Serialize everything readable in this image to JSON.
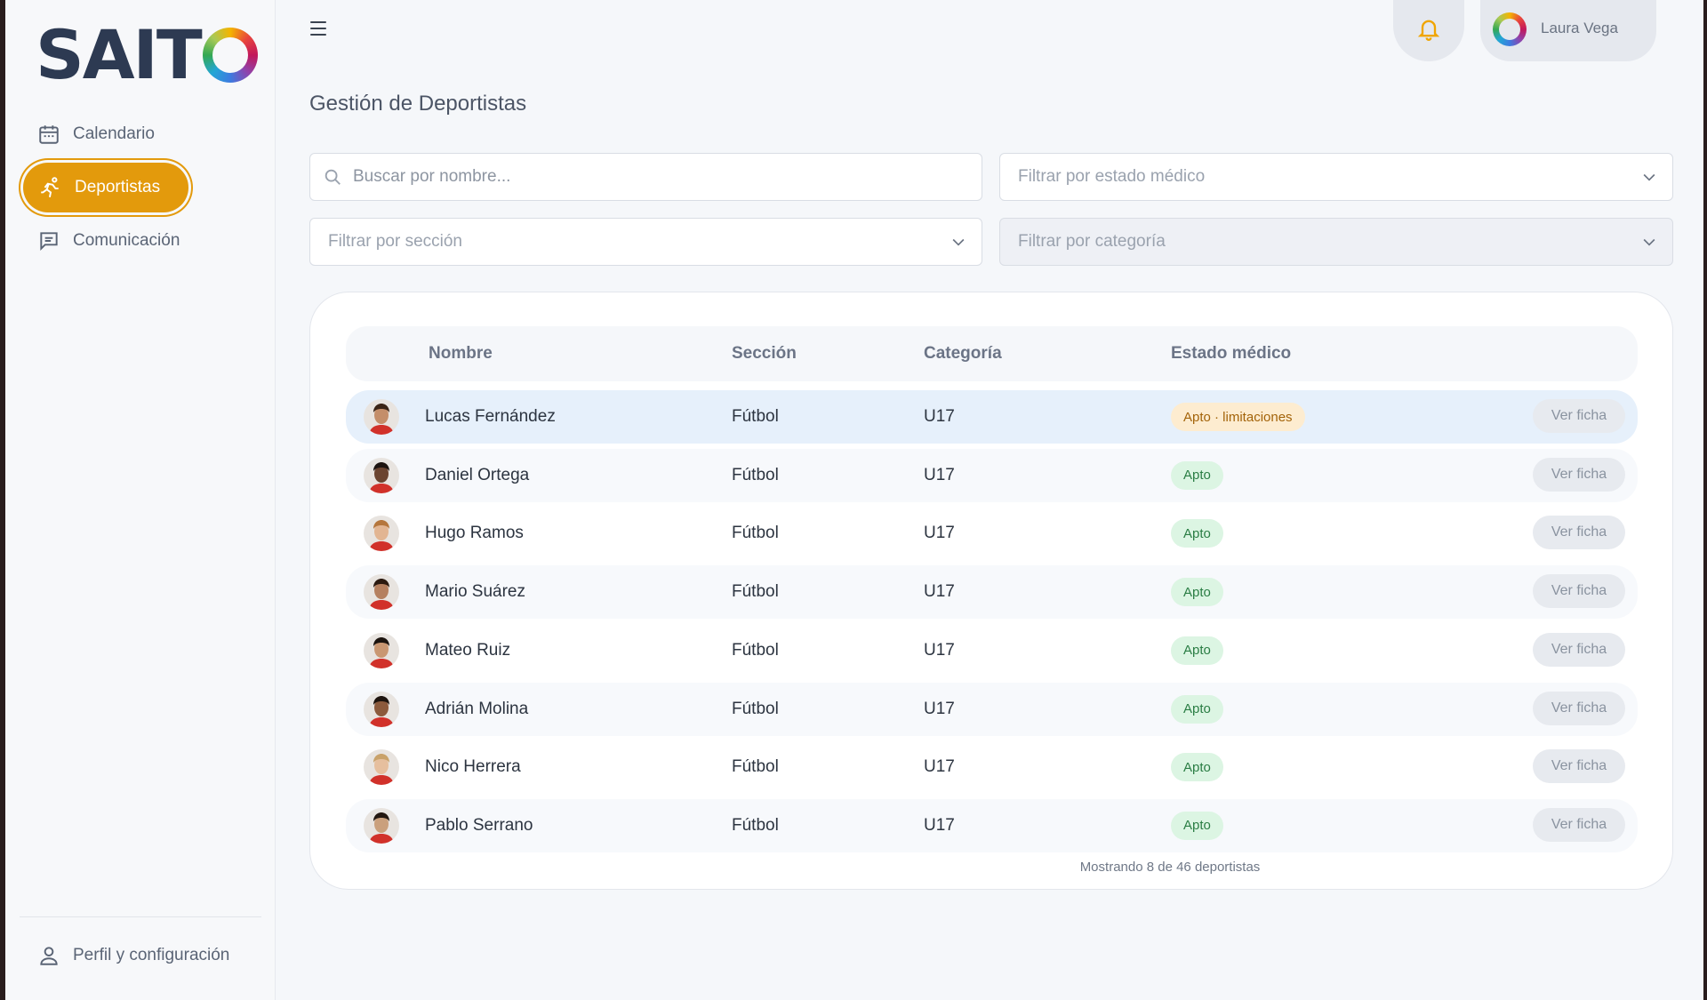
{
  "brand": {
    "logo_text": "SAIT"
  },
  "sidebar": {
    "items": [
      {
        "label": "Calendario",
        "icon": "calendar-icon"
      },
      {
        "label": "Deportistas",
        "icon": "runner-icon",
        "active": true
      },
      {
        "label": "Comunicación",
        "icon": "message-icon"
      }
    ],
    "profile_label": "Perfil y configuración"
  },
  "topbar": {
    "user_name": "Laura Vega"
  },
  "page": {
    "title": "Gestión de Deportistas"
  },
  "filters": {
    "search_placeholder": "Buscar por nombre...",
    "medical_placeholder": "Filtrar por estado médico",
    "section_placeholder": "Filtrar por sección",
    "category_placeholder": "Filtrar por categoría"
  },
  "table": {
    "headers": {
      "name": "Nombre",
      "section": "Sección",
      "category": "Categoría",
      "medical": "Estado médico"
    },
    "action_label": "Ver ficha",
    "rows": [
      {
        "name": "Lucas Fernández",
        "section": "Fútbol",
        "category": "U17",
        "status": "Apto · limitaciones",
        "status_type": "warn"
      },
      {
        "name": "Daniel Ortega",
        "section": "Fútbol",
        "category": "U17",
        "status": "Apto",
        "status_type": "ok"
      },
      {
        "name": "Hugo Ramos",
        "section": "Fútbol",
        "category": "U17",
        "status": "Apto",
        "status_type": "ok"
      },
      {
        "name": "Mario Suárez",
        "section": "Fútbol",
        "category": "U17",
        "status": "Apto",
        "status_type": "ok"
      },
      {
        "name": "Mateo Ruiz",
        "section": "Fútbol",
        "category": "U17",
        "status": "Apto",
        "status_type": "ok"
      },
      {
        "name": "Adrián Molina",
        "section": "Fútbol",
        "category": "U17",
        "status": "Apto",
        "status_type": "ok"
      },
      {
        "name": "Nico Herrera",
        "section": "Fútbol",
        "category": "U17",
        "status": "Apto",
        "status_type": "ok"
      },
      {
        "name": "Pablo Serrano",
        "section": "Fútbol",
        "category": "U17",
        "status": "Apto",
        "status_type": "ok"
      }
    ],
    "footer": "Mostrando 8 de 46 deportistas"
  },
  "colors": {
    "accent": "#e39a0c",
    "ok_badge": "#dcf5e3",
    "warn_badge": "#fdecd0",
    "selected_row": "#e6f0fb"
  }
}
